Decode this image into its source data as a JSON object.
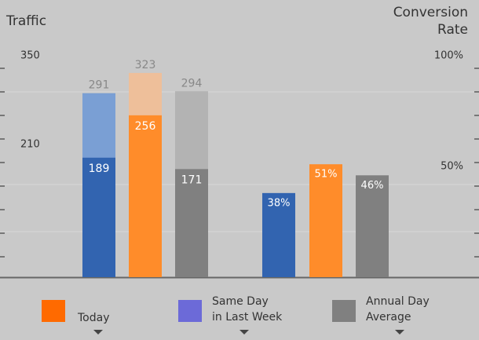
{
  "chart_data": {
    "type": "bar",
    "title_left": "Traffic",
    "title_right": [
      "Conversion",
      "Rate"
    ],
    "ylim": [
      0,
      380
    ],
    "yticks": [
      210,
      350
    ],
    "y2lim": [
      0,
      100
    ],
    "y2ticks": [
      {
        "value": 50,
        "label": "50%"
      },
      {
        "value": 100,
        "label": "100%"
      }
    ],
    "traffic": [
      {
        "color": "#3264b0",
        "value": 189,
        "back_color": "#7a9fd4",
        "back_value": 291
      },
      {
        "color": "#ff8c2a",
        "value": 256,
        "back_color": "#eebf9a",
        "back_value": 323
      },
      {
        "color": "#808080",
        "value": 171,
        "back_color": "#b3b3b3",
        "back_value": 294
      }
    ],
    "conversion": {
      "colors": [
        "#3264b0",
        "#ff8c2a",
        "#808080"
      ],
      "values": [
        38,
        51,
        46
      ],
      "value_labels": [
        "38%",
        "51%",
        "46%"
      ]
    },
    "legend": [
      {
        "label": [
          "Today"
        ],
        "color": "#ff6a00"
      },
      {
        "label": [
          "Same Day",
          "in Last Week"
        ],
        "color": "#6c6ad8"
      },
      {
        "label": [
          "Annual Day",
          "Average"
        ],
        "color": "#808080"
      }
    ]
  }
}
